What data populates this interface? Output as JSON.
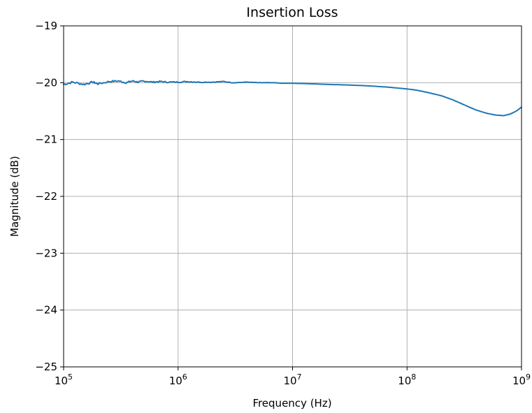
{
  "chart_data": {
    "type": "line",
    "title": "Insertion Loss",
    "xlabel": "Frequency (Hz)",
    "ylabel": "Magnitude (dB)",
    "x_scale": "log",
    "xlim": [
      100000,
      1000000000
    ],
    "ylim": [
      -25,
      -19
    ],
    "grid": true,
    "x_ticks": [
      {
        "value": 100000,
        "base": "10",
        "exp": "5"
      },
      {
        "value": 1000000,
        "base": "10",
        "exp": "6"
      },
      {
        "value": 10000000,
        "base": "10",
        "exp": "7"
      },
      {
        "value": 100000000,
        "base": "10",
        "exp": "8"
      },
      {
        "value": 1000000000,
        "base": "10",
        "exp": "9"
      }
    ],
    "y_ticks": [
      {
        "value": -19,
        "label": "−19"
      },
      {
        "value": -20,
        "label": "−20"
      },
      {
        "value": -21,
        "label": "−21"
      },
      {
        "value": -22,
        "label": "−22"
      },
      {
        "value": -23,
        "label": "−23"
      },
      {
        "value": -24,
        "label": "−24"
      },
      {
        "value": -25,
        "label": "−25"
      }
    ],
    "series": [
      {
        "color": "#1f77b4",
        "points": [
          [
            100000,
            -20.03
          ],
          [
            120000,
            -19.99
          ],
          [
            150000,
            -20.03
          ],
          [
            180000,
            -19.99
          ],
          [
            200000,
            -20.02
          ],
          [
            250000,
            -19.98
          ],
          [
            300000,
            -19.97
          ],
          [
            350000,
            -20.0
          ],
          [
            400000,
            -19.97
          ],
          [
            450000,
            -19.99
          ],
          [
            500000,
            -19.97
          ],
          [
            600000,
            -19.99
          ],
          [
            700000,
            -19.98
          ],
          [
            800000,
            -19.99
          ],
          [
            1000000,
            -19.99
          ],
          [
            1200000,
            -19.98
          ],
          [
            1500000,
            -19.99
          ],
          [
            2000000,
            -19.99
          ],
          [
            2500000,
            -19.98
          ],
          [
            3000000,
            -20.0
          ],
          [
            4000000,
            -19.99
          ],
          [
            5000000,
            -20.0
          ],
          [
            6000000,
            -20.0
          ],
          [
            7000000,
            -20.0
          ],
          [
            8000000,
            -20.01
          ],
          [
            10000000,
            -20.01
          ],
          [
            15000000,
            -20.02
          ],
          [
            20000000,
            -20.03
          ],
          [
            30000000,
            -20.04
          ],
          [
            40000000,
            -20.05
          ],
          [
            50000000,
            -20.06
          ],
          [
            70000000,
            -20.08
          ],
          [
            100000000,
            -20.11
          ],
          [
            120000000,
            -20.13
          ],
          [
            150000000,
            -20.17
          ],
          [
            200000000,
            -20.23
          ],
          [
            250000000,
            -20.3
          ],
          [
            300000000,
            -20.37
          ],
          [
            350000000,
            -20.43
          ],
          [
            400000000,
            -20.48
          ],
          [
            500000000,
            -20.54
          ],
          [
            600000000,
            -20.57
          ],
          [
            700000000,
            -20.58
          ],
          [
            800000000,
            -20.55
          ],
          [
            900000000,
            -20.5
          ],
          [
            1000000000,
            -20.43
          ]
        ]
      }
    ]
  }
}
